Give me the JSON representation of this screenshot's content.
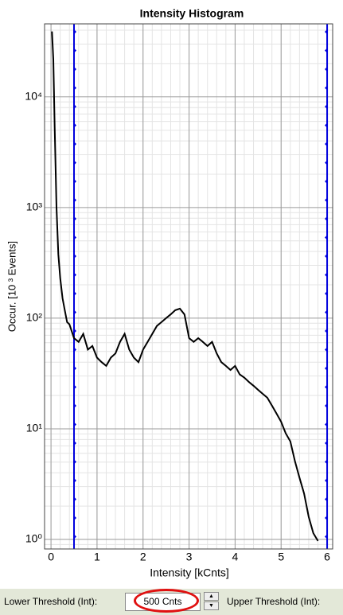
{
  "chart_data": {
    "type": "line",
    "title": "Intensity Histogram",
    "x_label": "Intensity [kCnts]",
    "y_label": "Occur. [10 ³ Events]",
    "x": [
      0.02,
      0.05,
      0.08,
      0.12,
      0.16,
      0.2,
      0.25,
      0.3,
      0.35,
      0.4,
      0.5,
      0.6,
      0.7,
      0.8,
      0.9,
      1.0,
      1.1,
      1.2,
      1.3,
      1.4,
      1.5,
      1.6,
      1.7,
      1.8,
      1.9,
      2.0,
      2.1,
      2.2,
      2.3,
      2.4,
      2.5,
      2.6,
      2.7,
      2.8,
      2.9,
      3.0,
      3.1,
      3.2,
      3.3,
      3.4,
      3.5,
      3.6,
      3.7,
      3.8,
      3.9,
      4.0,
      4.1,
      4.2,
      4.3,
      4.4,
      4.5,
      4.6,
      4.7,
      4.8,
      4.9,
      5.0,
      5.1,
      5.2,
      5.3,
      5.4,
      5.5,
      5.6,
      5.7,
      5.8
    ],
    "series": [
      {
        "color": "#000000",
        "values": [
          39000,
          21900,
          5350,
          1000,
          377,
          229,
          151,
          118,
          92,
          88,
          66,
          61,
          72,
          52,
          56,
          44,
          40,
          37,
          44,
          48,
          61,
          72,
          52,
          44,
          40,
          52,
          61,
          72,
          85,
          92,
          100,
          108,
          118,
          122,
          108,
          66,
          61,
          66,
          61,
          56,
          61,
          48,
          40,
          37,
          34,
          37,
          31,
          29,
          26.5,
          24.5,
          22.5,
          20.7,
          19.1,
          16.2,
          13.7,
          11.6,
          9.1,
          7.7,
          5.1,
          3.6,
          2.6,
          1.6,
          1.14,
          0.97
        ]
      }
    ],
    "xlim": [
      -0.14,
      6.12
    ],
    "xticks": [
      0,
      1,
      2,
      3,
      4,
      5,
      6
    ],
    "ylim": [
      0.82,
      45700
    ],
    "log_y": true,
    "yticks": [
      {
        "value": 1,
        "label": "10⁰"
      },
      {
        "value": 10,
        "label": "10¹"
      },
      {
        "value": 100,
        "label": "10²"
      },
      {
        "value": 1000,
        "label": "10³"
      },
      {
        "value": 10000,
        "label": "10⁴"
      }
    ],
    "grid": true,
    "minor_grid": true,
    "thresholds": [
      0.5,
      6.0
    ],
    "threshold_color": "#0000dd"
  },
  "controls": {
    "lower_label": "Lower Threshold (Int):",
    "lower_value": "500 Cnts",
    "upper_label": "Upper Threshold (Int):"
  }
}
